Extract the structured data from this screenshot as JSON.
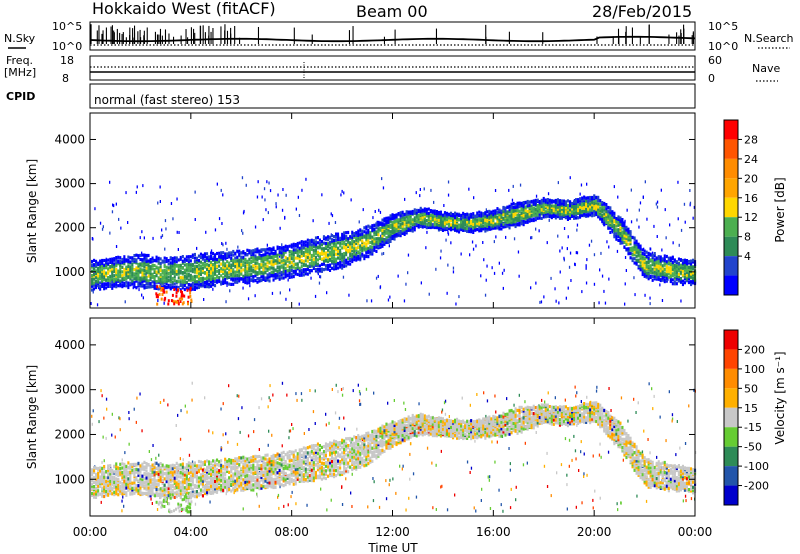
{
  "header": {
    "station": "Hokkaido West (fitACF)",
    "beam": "Beam 00",
    "date": "28/Feb/2015"
  },
  "strip_labels": {
    "nsky": "N.Sky",
    "nsky_top": "10^5",
    "nsky_bottom": "10^0",
    "nsearch": "N.Search",
    "nsearch_top": "10^5",
    "nsearch_bottom": "10^0",
    "freq_line1": "Freq.",
    "freq_line2": "[MHz]",
    "freq_top": "18",
    "freq_bottom": "8",
    "nave": "Nave",
    "nave_top": "60",
    "nave_bottom": "0",
    "cpid": "CPID",
    "cpid_value": "normal (fast stereo) 153"
  },
  "chart_data": [
    {
      "type": "heatmap",
      "title": "",
      "quantity": "Power",
      "ylabel": "Slant Range [km]",
      "xlabel": "",
      "ylim": [
        180,
        4600
      ],
      "xlim_hours": [
        0,
        24
      ],
      "yticks": [
        "1000",
        "2000",
        "3000",
        "4000"
      ],
      "colorbar_label": "Power [dB]",
      "colorbar_ticks": [
        "4",
        "8",
        "12",
        "16",
        "20",
        "24",
        "28"
      ],
      "colorbar_colors": [
        "#0000ff",
        "#2244cc",
        "#2e8b57",
        "#4caf50",
        "#ffd700",
        "#ffa500",
        "#ff8c00",
        "#ff5500",
        "#ff0000"
      ],
      "echo_band": {
        "hours": [
          0,
          1,
          2,
          3,
          4,
          5,
          6,
          7,
          8,
          9,
          10,
          11,
          12,
          13,
          14,
          15,
          16,
          17,
          18,
          19,
          20,
          21,
          22,
          23,
          24
        ],
        "lower_km": [
          650,
          700,
          700,
          650,
          650,
          750,
          800,
          850,
          950,
          1050,
          1150,
          1400,
          1800,
          2050,
          2000,
          1950,
          2000,
          2100,
          2300,
          2250,
          2350,
          1700,
          900,
          800,
          750
        ],
        "upper_km": [
          1300,
          1400,
          1450,
          1400,
          1450,
          1500,
          1550,
          1600,
          1700,
          1850,
          1950,
          2100,
          2350,
          2500,
          2400,
          2350,
          2450,
          2650,
          2700,
          2650,
          2800,
          2300,
          1500,
          1400,
          1300
        ]
      },
      "near_range_echo": {
        "hours": [
          2.5,
          4
        ],
        "km": [
          300,
          700
        ]
      }
    },
    {
      "type": "heatmap",
      "title": "",
      "quantity": "Velocity",
      "ylabel": "Slant Range [km]",
      "xlabel": "Time UT",
      "ylim": [
        180,
        4600
      ],
      "xlim_hours": [
        0,
        24
      ],
      "yticks": [
        "1000",
        "2000",
        "3000",
        "4000"
      ],
      "xticks": [
        "00:00",
        "04:00",
        "08:00",
        "12:00",
        "16:00",
        "20:00",
        "00:00"
      ],
      "colorbar_label": "Velocity [m s⁻¹]",
      "colorbar_ticks": [
        "200",
        "100",
        "50",
        "15",
        "-15",
        "-50",
        "-100",
        "-200"
      ],
      "colorbar_colors": [
        "#0000cc",
        "#2255aa",
        "#2e8b57",
        "#66cc33",
        "#c8c8c8",
        "#ffb000",
        "#ff8c00",
        "#ff4400",
        "#ee0000"
      ]
    }
  ]
}
